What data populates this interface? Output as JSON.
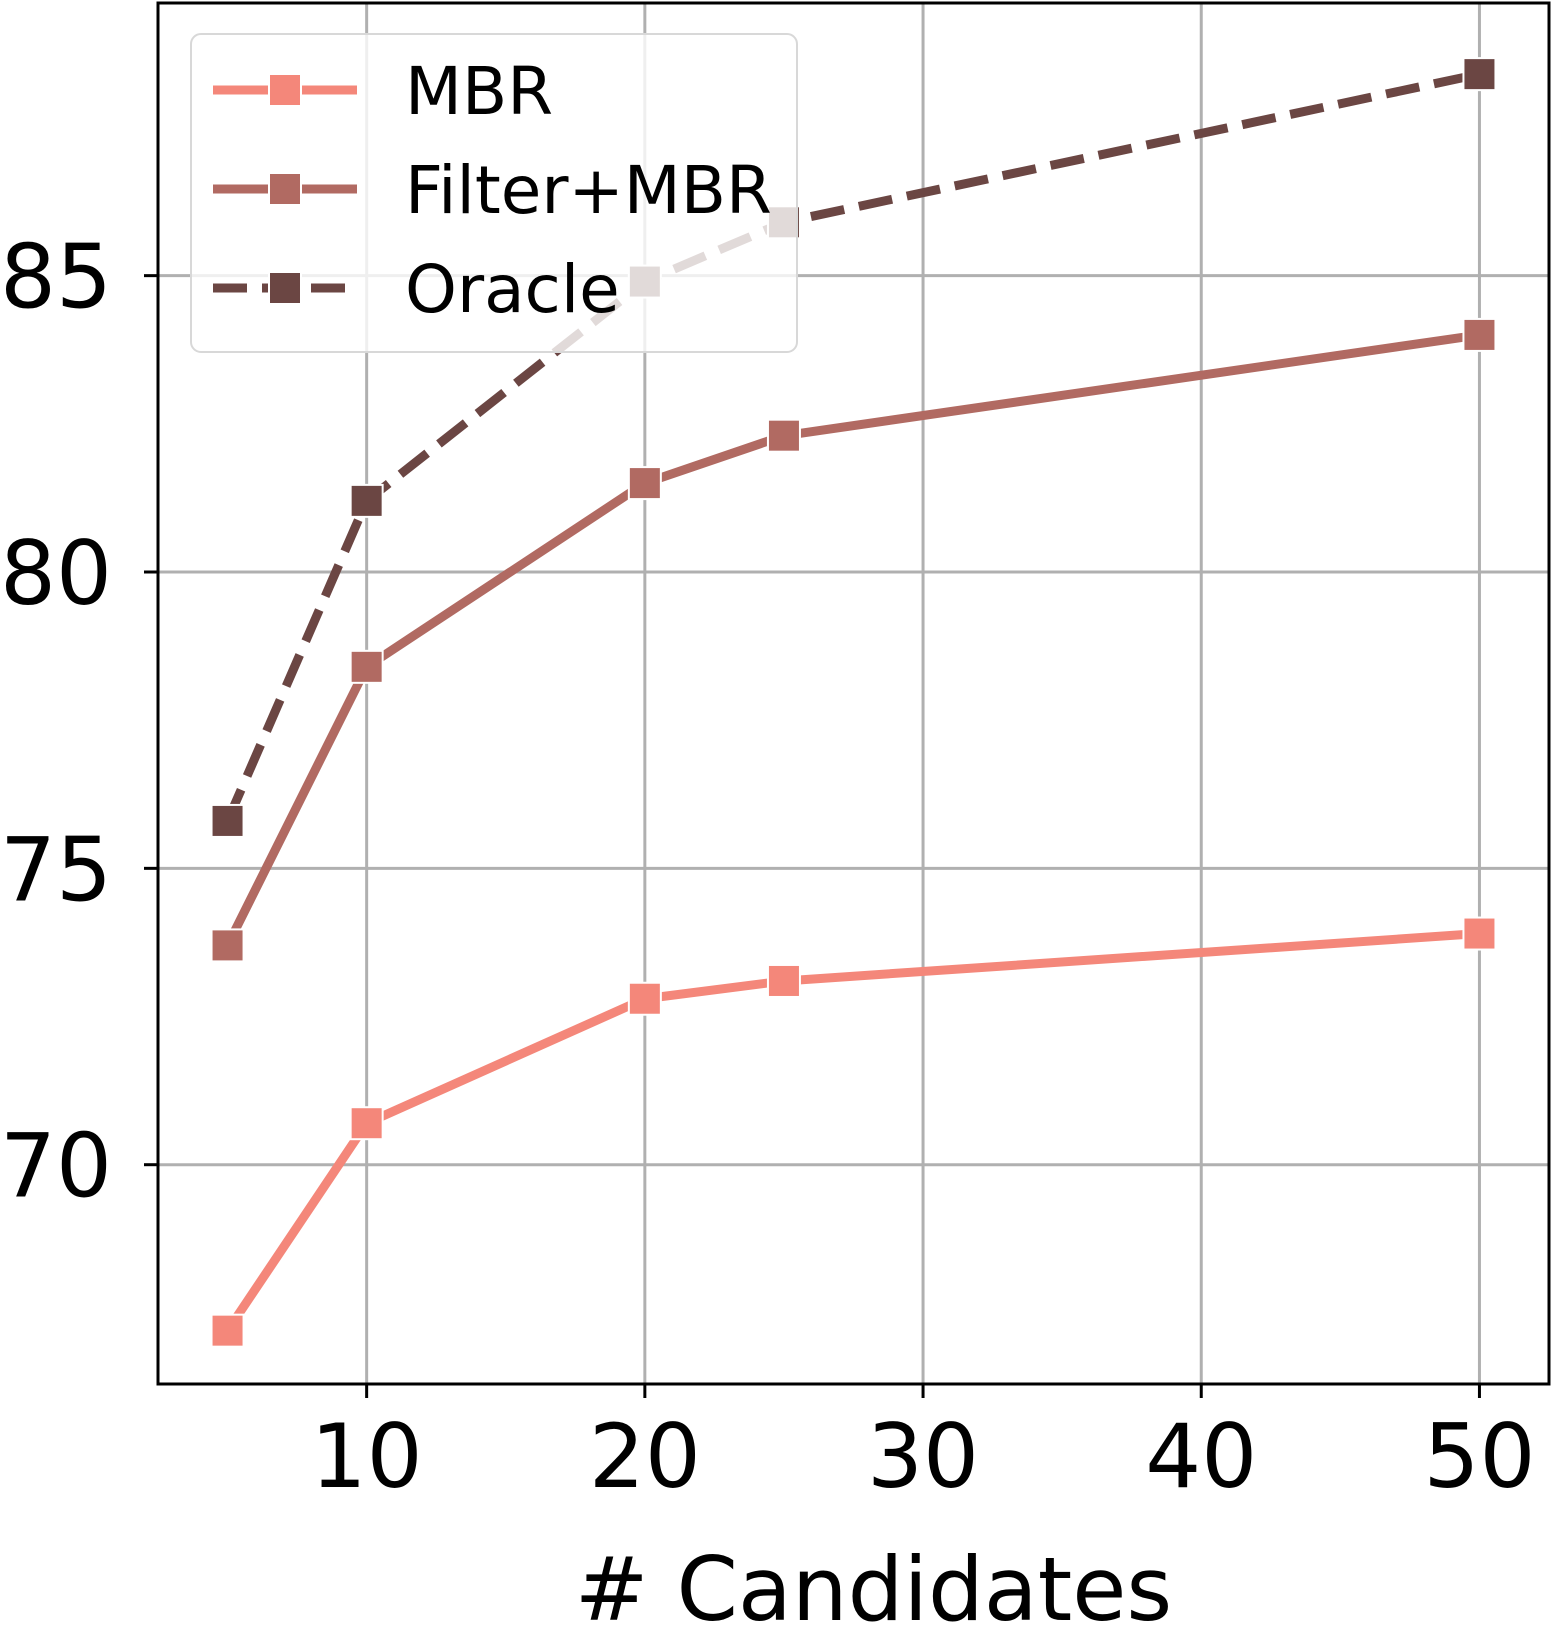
{
  "chart_data": {
    "type": "line",
    "title": "",
    "xlabel": "# Candidates",
    "ylabel": "",
    "x": [
      5,
      10,
      20,
      25,
      50
    ],
    "xlim": [
      2.5,
      52.5
    ],
    "ylim": [
      66.3,
      89.6
    ],
    "xticks": [
      "10",
      "20",
      "30",
      "40",
      "50"
    ],
    "yticks": [
      "70",
      "75",
      "80",
      "85"
    ],
    "grid": true,
    "legend_position": "upper-left",
    "series": [
      {
        "name": "MBR",
        "values": [
          67.2,
          70.7,
          72.8,
          73.1,
          73.9
        ],
        "color": "#f4877a",
        "style": "solid",
        "marker": "square"
      },
      {
        "name": "Filter+MBR",
        "values": [
          73.7,
          78.4,
          81.5,
          82.3,
          84.0
        ],
        "color": "#b16a62",
        "style": "solid",
        "marker": "square"
      },
      {
        "name": "Oracle",
        "values": [
          75.8,
          81.2,
          84.9,
          85.9,
          88.4
        ],
        "color": "#6b4643",
        "style": "dashed",
        "marker": "square"
      }
    ]
  }
}
